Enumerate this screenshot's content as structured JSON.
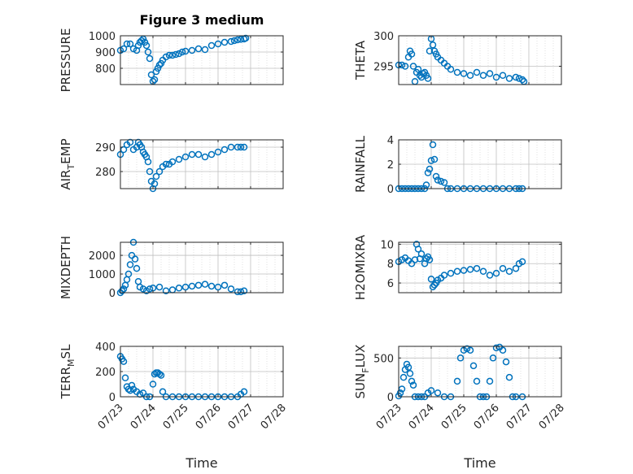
{
  "colors": {
    "marker": "#0072BD",
    "axis": "#262626",
    "grid": "#BFBFBF",
    "background": "#FFFFFF"
  },
  "chart_data": [
    {
      "type": "scatter",
      "title": "Figure 3 medium",
      "ylabel": "PRESSURE",
      "ylabel_sub": "",
      "ylabel_sub_after": "",
      "xlabel": "",
      "xlim": [
        "07/23",
        "07/28"
      ],
      "ylim": [
        700,
        1000
      ],
      "yticks": [
        "800",
        "900",
        "1000"
      ],
      "xticks": [
        "07/23",
        "07/24",
        "07/25",
        "07/26",
        "07/27",
        "07/28"
      ],
      "show_xticklabels": false,
      "grid": true,
      "series": [
        {
          "x": [
            0.0,
            0.1,
            0.2,
            0.3,
            0.4,
            0.5,
            0.55,
            0.6,
            0.65,
            0.7,
            0.75,
            0.8,
            0.85,
            0.9,
            0.95,
            1.0,
            1.05,
            1.1,
            1.15,
            1.2,
            1.25,
            1.3,
            1.4,
            1.5,
            1.6,
            1.7,
            1.8,
            1.9,
            2.0,
            2.2,
            2.4,
            2.6,
            2.8,
            3.0,
            3.2,
            3.4,
            3.5,
            3.6,
            3.7,
            3.8,
            3.85
          ],
          "y": [
            910,
            920,
            950,
            950,
            920,
            910,
            940,
            960,
            970,
            980,
            960,
            940,
            900,
            860,
            760,
            720,
            730,
            780,
            800,
            820,
            830,
            850,
            870,
            880,
            880,
            885,
            890,
            900,
            905,
            910,
            920,
            915,
            940,
            950,
            960,
            965,
            970,
            975,
            978,
            980,
            985
          ]
        }
      ]
    },
    {
      "type": "scatter",
      "title": "",
      "ylabel": "THETA",
      "ylabel_sub": "",
      "ylabel_sub_after": "",
      "xlabel": "",
      "xlim": [
        "07/23",
        "07/28"
      ],
      "ylim": [
        292,
        300
      ],
      "yticks": [
        "295",
        "300"
      ],
      "xticks": [
        "07/23",
        "07/24",
        "07/25",
        "07/26",
        "07/27",
        "07/28"
      ],
      "show_xticklabels": false,
      "grid": true,
      "series": [
        {
          "x": [
            0.0,
            0.1,
            0.2,
            0.3,
            0.35,
            0.4,
            0.45,
            0.5,
            0.55,
            0.6,
            0.65,
            0.7,
            0.75,
            0.8,
            0.85,
            0.9,
            0.95,
            1.0,
            1.05,
            1.1,
            1.15,
            1.2,
            1.3,
            1.4,
            1.5,
            1.6,
            1.8,
            2.0,
            2.2,
            2.4,
            2.6,
            2.8,
            3.0,
            3.2,
            3.4,
            3.6,
            3.7,
            3.8,
            3.85
          ],
          "y": [
            295.2,
            295.2,
            295.0,
            296.5,
            297.5,
            297.0,
            295.0,
            292.5,
            294.0,
            294.5,
            293.5,
            293.2,
            293.8,
            294.0,
            293.5,
            293.0,
            297.5,
            299.5,
            298.5,
            297.5,
            297.0,
            296.5,
            296.0,
            295.5,
            295.0,
            294.5,
            294.0,
            293.8,
            293.5,
            294.0,
            293.5,
            293.8,
            293.2,
            293.5,
            293.0,
            293.2,
            293.0,
            292.8,
            292.5
          ]
        }
      ]
    },
    {
      "type": "scatter",
      "title": "",
      "ylabel": "AIR",
      "ylabel_sub": "T",
      "ylabel_sub_after": "EMP",
      "xlabel": "",
      "xlim": [
        "07/23",
        "07/28"
      ],
      "ylim": [
        273,
        293
      ],
      "yticks": [
        "280",
        "290"
      ],
      "xticks": [
        "07/23",
        "07/24",
        "07/25",
        "07/26",
        "07/27",
        "07/28"
      ],
      "show_xticklabels": false,
      "grid": true,
      "series": [
        {
          "x": [
            0.0,
            0.1,
            0.2,
            0.3,
            0.4,
            0.5,
            0.55,
            0.6,
            0.65,
            0.7,
            0.75,
            0.8,
            0.85,
            0.9,
            0.95,
            1.0,
            1.05,
            1.1,
            1.2,
            1.3,
            1.4,
            1.5,
            1.6,
            1.8,
            2.0,
            2.2,
            2.4,
            2.6,
            2.8,
            3.0,
            3.2,
            3.4,
            3.6,
            3.7,
            3.8
          ],
          "y": [
            287,
            289,
            291,
            292,
            289,
            290,
            292,
            291,
            290,
            288,
            287,
            286,
            284,
            280,
            276,
            273,
            275,
            278,
            280,
            282,
            283,
            283,
            284,
            285,
            286,
            287,
            287,
            286,
            287,
            288,
            289,
            290,
            290,
            290,
            290
          ]
        }
      ]
    },
    {
      "type": "scatter",
      "title": "",
      "ylabel": "RAINFALL",
      "ylabel_sub": "",
      "ylabel_sub_after": "",
      "xlabel": "",
      "xlim": [
        "07/23",
        "07/28"
      ],
      "ylim": [
        0,
        4
      ],
      "yticks": [
        "0",
        "2",
        "4"
      ],
      "xticks": [
        "07/23",
        "07/24",
        "07/25",
        "07/26",
        "07/27",
        "07/28"
      ],
      "show_xticklabels": false,
      "grid": true,
      "series": [
        {
          "x": [
            0.0,
            0.1,
            0.2,
            0.3,
            0.4,
            0.5,
            0.6,
            0.7,
            0.8,
            0.85,
            0.9,
            0.95,
            1.0,
            1.05,
            1.1,
            1.15,
            1.2,
            1.3,
            1.4,
            1.5,
            1.6,
            1.8,
            2.0,
            2.2,
            2.4,
            2.6,
            2.8,
            3.0,
            3.2,
            3.4,
            3.6,
            3.7,
            3.8
          ],
          "y": [
            0,
            0,
            0,
            0,
            0,
            0,
            0,
            0,
            0,
            0.3,
            1.3,
            1.6,
            2.3,
            3.6,
            2.4,
            1.0,
            0.7,
            0.6,
            0.5,
            0,
            0,
            0,
            0,
            0,
            0,
            0,
            0,
            0,
            0,
            0,
            0,
            0,
            0
          ]
        }
      ]
    },
    {
      "type": "scatter",
      "title": "",
      "ylabel": "MIXDEPTH",
      "ylabel_sub": "",
      "ylabel_sub_after": "",
      "xlabel": "",
      "xlim": [
        "07/23",
        "07/28"
      ],
      "ylim": [
        0,
        2700
      ],
      "yticks": [
        "0",
        "1000",
        "2000"
      ],
      "xticks": [
        "07/23",
        "07/24",
        "07/25",
        "07/26",
        "07/27",
        "07/28"
      ],
      "show_xticklabels": false,
      "grid": true,
      "series": [
        {
          "x": [
            0.0,
            0.05,
            0.1,
            0.15,
            0.2,
            0.25,
            0.3,
            0.35,
            0.4,
            0.45,
            0.5,
            0.55,
            0.6,
            0.7,
            0.8,
            0.9,
            1.0,
            1.2,
            1.4,
            1.6,
            1.8,
            2.0,
            2.2,
            2.4,
            2.6,
            2.8,
            3.0,
            3.2,
            3.4,
            3.6,
            3.7,
            3.8
          ],
          "y": [
            0,
            100,
            200,
            400,
            700,
            1000,
            1500,
            2000,
            2700,
            1800,
            1300,
            600,
            300,
            200,
            100,
            200,
            250,
            300,
            100,
            150,
            250,
            300,
            350,
            400,
            450,
            350,
            300,
            400,
            200,
            50,
            50,
            100
          ]
        }
      ]
    },
    {
      "type": "scatter",
      "title": "",
      "ylabel": "H2OMIXRA",
      "ylabel_sub": "",
      "ylabel_sub_after": "",
      "xlabel": "",
      "xlim": [
        "07/23",
        "07/28"
      ],
      "ylim": [
        5,
        10.2
      ],
      "yticks": [
        "6",
        "8",
        "10"
      ],
      "xticks": [
        "07/23",
        "07/24",
        "07/25",
        "07/26",
        "07/27",
        "07/28"
      ],
      "show_xticklabels": false,
      "grid": true,
      "series": [
        {
          "x": [
            0.0,
            0.1,
            0.2,
            0.3,
            0.4,
            0.5,
            0.55,
            0.6,
            0.65,
            0.7,
            0.8,
            0.85,
            0.9,
            0.95,
            1.0,
            1.05,
            1.1,
            1.15,
            1.2,
            1.3,
            1.4,
            1.6,
            1.8,
            2.0,
            2.2,
            2.4,
            2.6,
            2.8,
            3.0,
            3.2,
            3.4,
            3.6,
            3.7,
            3.8
          ],
          "y": [
            8.2,
            8.4,
            8.6,
            8.3,
            8.0,
            8.4,
            10.0,
            9.5,
            8.5,
            9.0,
            8.0,
            8.5,
            8.7,
            8.4,
            6.4,
            5.6,
            5.8,
            6.0,
            6.3,
            6.5,
            6.8,
            7.0,
            7.2,
            7.3,
            7.4,
            7.5,
            7.2,
            6.8,
            7.0,
            7.5,
            7.2,
            7.5,
            8.0,
            8.2
          ]
        }
      ]
    },
    {
      "type": "scatter",
      "title": "",
      "ylabel": "TERR",
      "ylabel_sub": "M",
      "ylabel_sub_after": "SL",
      "xlabel": "Time",
      "xlim": [
        "07/23",
        "07/28"
      ],
      "ylim": [
        0,
        400
      ],
      "yticks": [
        "0",
        "200",
        "400"
      ],
      "xticks": [
        "07/23",
        "07/24",
        "07/25",
        "07/26",
        "07/27",
        "07/28"
      ],
      "show_xticklabels": true,
      "grid": true,
      "series": [
        {
          "x": [
            0.0,
            0.05,
            0.1,
            0.15,
            0.2,
            0.25,
            0.3,
            0.35,
            0.4,
            0.5,
            0.6,
            0.7,
            0.8,
            0.9,
            1.0,
            1.05,
            1.1,
            1.15,
            1.2,
            1.25,
            1.3,
            1.4,
            1.6,
            1.8,
            2.0,
            2.2,
            2.4,
            2.6,
            2.8,
            3.0,
            3.2,
            3.4,
            3.6,
            3.7,
            3.8
          ],
          "y": [
            320,
            300,
            280,
            150,
            80,
            60,
            50,
            90,
            60,
            40,
            20,
            30,
            0,
            0,
            100,
            180,
            190,
            190,
            180,
            170,
            40,
            0,
            0,
            0,
            0,
            0,
            0,
            0,
            0,
            0,
            0,
            0,
            0,
            20,
            40
          ]
        }
      ]
    },
    {
      "type": "scatter",
      "title": "",
      "ylabel": "SUN",
      "ylabel_sub": "F",
      "ylabel_sub_after": "LUX",
      "xlabel": "Time",
      "xlim": [
        "07/23",
        "07/28"
      ],
      "ylim": [
        0,
        650
      ],
      "yticks": [
        "0",
        "500"
      ],
      "xticks": [
        "07/23",
        "07/24",
        "07/25",
        "07/26",
        "07/27",
        "07/28"
      ],
      "show_xticklabels": true,
      "grid": true,
      "series": [
        {
          "x": [
            0.0,
            0.05,
            0.1,
            0.15,
            0.2,
            0.25,
            0.3,
            0.35,
            0.4,
            0.45,
            0.5,
            0.6,
            0.7,
            0.8,
            0.9,
            1.0,
            1.2,
            1.4,
            1.6,
            1.8,
            1.9,
            2.0,
            2.1,
            2.2,
            2.3,
            2.4,
            2.5,
            2.6,
            2.7,
            2.8,
            2.9,
            3.0,
            3.1,
            3.2,
            3.3,
            3.4,
            3.5,
            3.6,
            3.8
          ],
          "y": [
            10,
            50,
            100,
            250,
            350,
            420,
            380,
            300,
            200,
            150,
            0,
            0,
            0,
            0,
            50,
            80,
            50,
            0,
            0,
            200,
            500,
            600,
            620,
            600,
            400,
            200,
            0,
            0,
            0,
            200,
            500,
            630,
            640,
            600,
            450,
            250,
            0,
            0,
            0
          ]
        }
      ]
    }
  ]
}
